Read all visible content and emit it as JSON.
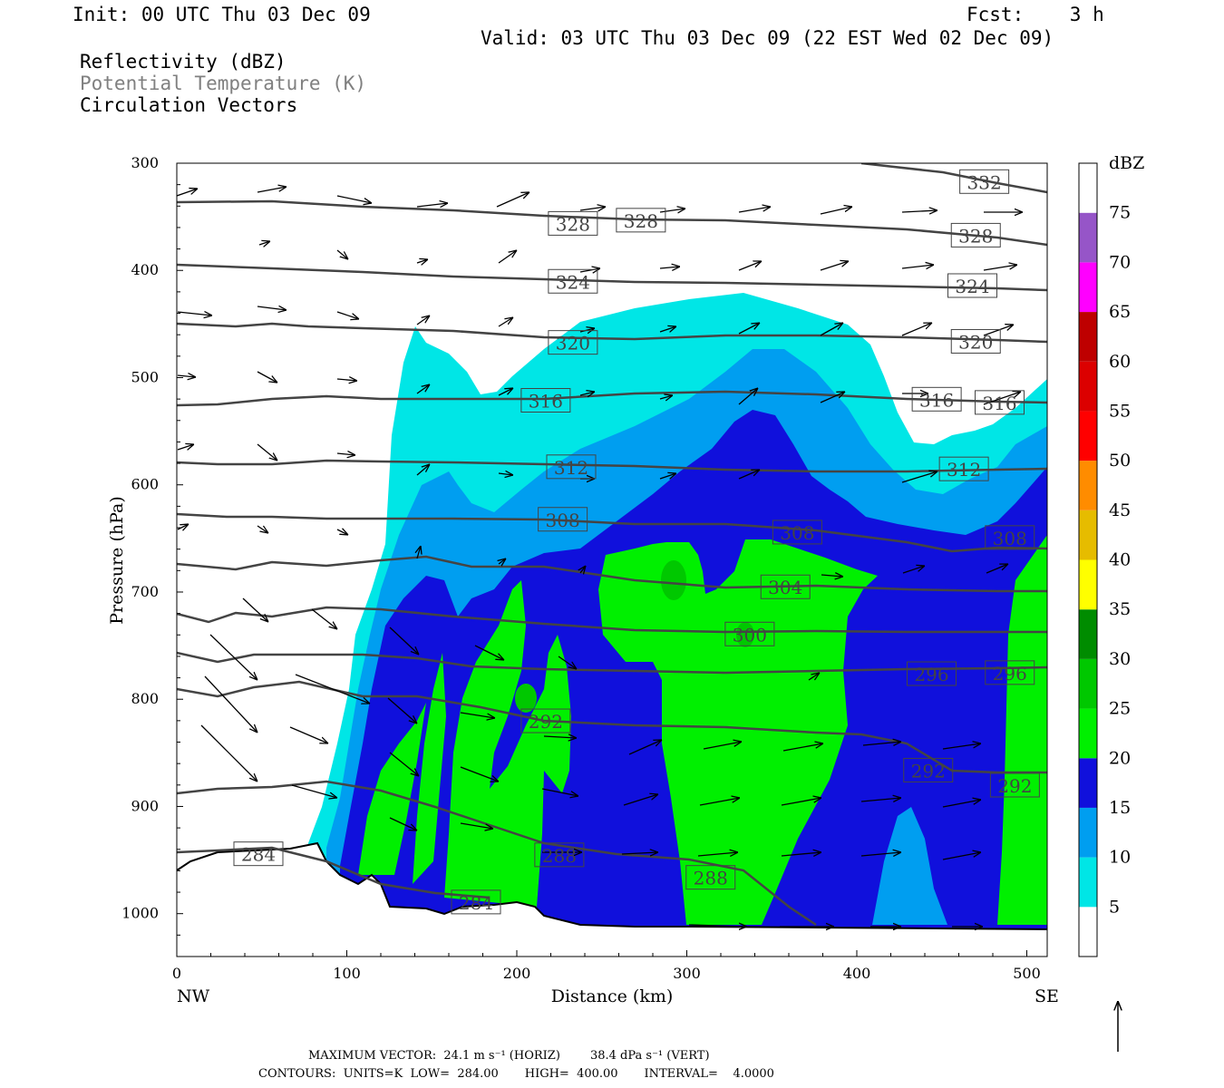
{
  "header": {
    "init": "Init: 00 UTC Thu 03 Dec 09",
    "fcst": "Fcst:    3 h",
    "valid": "Valid: 03 UTC Thu 03 Dec 09 (22 EST Wed 02 Dec 09)",
    "field1": "Reflectivity (dBZ)",
    "field2": "Potential Temperature (K)",
    "field3": "Circulation Vectors"
  },
  "footer": {
    "max_vector": "MAXIMUM VECTOR:  24.1 m s⁻¹ (HORIZ)        38.4 dPa s⁻¹ (VERT)",
    "contours": "CONTOURS:  UNITS=K  LOW=  284.00       HIGH=  400.00       INTERVAL=    4.0000"
  },
  "chart_data": {
    "type": "heatmap",
    "xlabel": "Distance (km)",
    "ylabel": "Pressure (hPa)",
    "xlim": [
      0,
      512
    ],
    "ylim": [
      1040,
      300
    ],
    "x_ticks": [
      0,
      100,
      200,
      300,
      400,
      500
    ],
    "y_ticks": [
      300,
      400,
      500,
      600,
      700,
      800,
      900,
      1000
    ],
    "x_left_label": "NW",
    "x_right_label": "SE",
    "colorbar": {
      "unit": "dBZ",
      "levels": [
        5,
        10,
        15,
        20,
        25,
        30,
        35,
        40,
        45,
        50,
        55,
        60,
        65,
        70,
        75
      ],
      "colors": [
        "#ffffff",
        "#00e6e6",
        "#009ef0",
        "#1010dc",
        "#00f000",
        "#00c800",
        "#008c00",
        "#ffff00",
        "#e6bc00",
        "#ff8c00",
        "#ff0000",
        "#dc0000",
        "#be0000",
        "#ff00ff",
        "#9655c8",
        "#ffffff"
      ]
    },
    "theta_contour_labels": [
      {
        "value": "332",
        "x": 475,
        "p": 318
      },
      {
        "value": "328",
        "x": 233,
        "p": 357
      },
      {
        "value": "328",
        "x": 273,
        "p": 354
      },
      {
        "value": "328",
        "x": 470,
        "p": 368
      },
      {
        "value": "324",
        "x": 233,
        "p": 411
      },
      {
        "value": "324",
        "x": 468,
        "p": 415
      },
      {
        "value": "320",
        "x": 233,
        "p": 468
      },
      {
        "value": "320",
        "x": 470,
        "p": 467
      },
      {
        "value": "316",
        "x": 217,
        "p": 522
      },
      {
        "value": "316",
        "x": 447,
        "p": 521
      },
      {
        "value": "316",
        "x": 484,
        "p": 524
      },
      {
        "value": "312",
        "x": 232,
        "p": 584
      },
      {
        "value": "312",
        "x": 463,
        "p": 586
      },
      {
        "value": "308",
        "x": 227,
        "p": 633
      },
      {
        "value": "308",
        "x": 365,
        "p": 645
      },
      {
        "value": "308",
        "x": 490,
        "p": 650
      },
      {
        "value": "304",
        "x": 358,
        "p": 696
      },
      {
        "value": "300",
        "x": 337,
        "p": 740
      },
      {
        "value": "296",
        "x": 444,
        "p": 777
      },
      {
        "value": "296",
        "x": 490,
        "p": 776
      },
      {
        "value": "292",
        "x": 217,
        "p": 821
      },
      {
        "value": "292",
        "x": 442,
        "p": 867
      },
      {
        "value": "292",
        "x": 493,
        "p": 881
      },
      {
        "value": "288",
        "x": 225,
        "p": 946
      },
      {
        "value": "288",
        "x": 314,
        "p": 967
      },
      {
        "value": "284",
        "x": 48,
        "p": 945
      },
      {
        "value": "284",
        "x": 176,
        "p": 990
      }
    ],
    "contour_levels": [
      284,
      288,
      292,
      296,
      300,
      304,
      308,
      312,
      316,
      320,
      324,
      328,
      332
    ]
  }
}
